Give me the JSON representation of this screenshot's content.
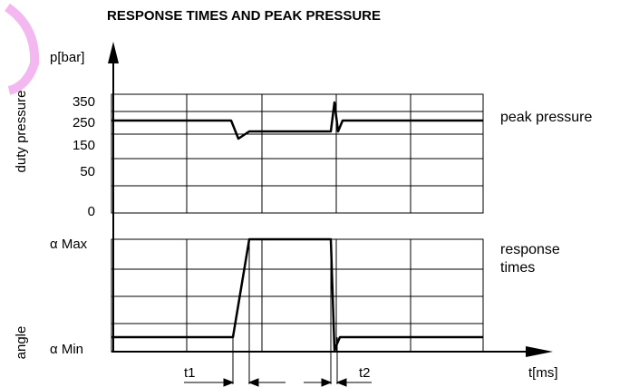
{
  "title": "RESPONSE TIMES AND PEAK PRESSURE",
  "pressure_unit": "p[bar]",
  "pressure_axis_label": "duty pressure",
  "pressure_ticks": [
    "350",
    "250",
    "150",
    "50",
    "0"
  ],
  "angle_axis_label": "angle",
  "angle_ticks": [
    "α Max",
    "α Min"
  ],
  "pressure_curve_label": "peak pressure",
  "angle_curve_label": [
    "response",
    "times"
  ],
  "time_markers": [
    "t1",
    "t2"
  ],
  "time_axis_label": "t[ms]"
}
